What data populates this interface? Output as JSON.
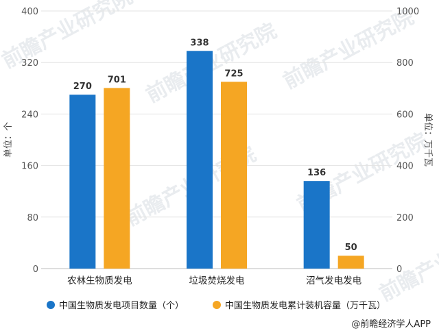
{
  "chart_data": {
    "type": "bar",
    "categories": [
      "农林生物质发电",
      "垃圾焚烧发电",
      "沼气发电发电"
    ],
    "series": [
      {
        "name": "中国生物质发电项目数量（个）",
        "values": [
          270,
          338,
          136
        ],
        "axis": "left",
        "color": "#1a75c8"
      },
      {
        "name": "中国生物质发电累计装机容量（万千瓦）",
        "values": [
          701,
          725,
          50
        ],
        "axis": "right",
        "color": "#f5a623"
      }
    ],
    "ylabel_left": "单位：个",
    "ylabel_right": "单位：万千瓦",
    "ylim_left": [
      0,
      400
    ],
    "ylim_right": [
      0,
      1000
    ],
    "yticks_left": [
      0,
      80,
      160,
      240,
      320,
      400
    ],
    "yticks_right": [
      0,
      200,
      400,
      600,
      800,
      1000
    ],
    "grid": true,
    "legend": "bottom-left",
    "source": "@前瞻经济学人APP",
    "watermark": "前瞻产业研究院"
  }
}
